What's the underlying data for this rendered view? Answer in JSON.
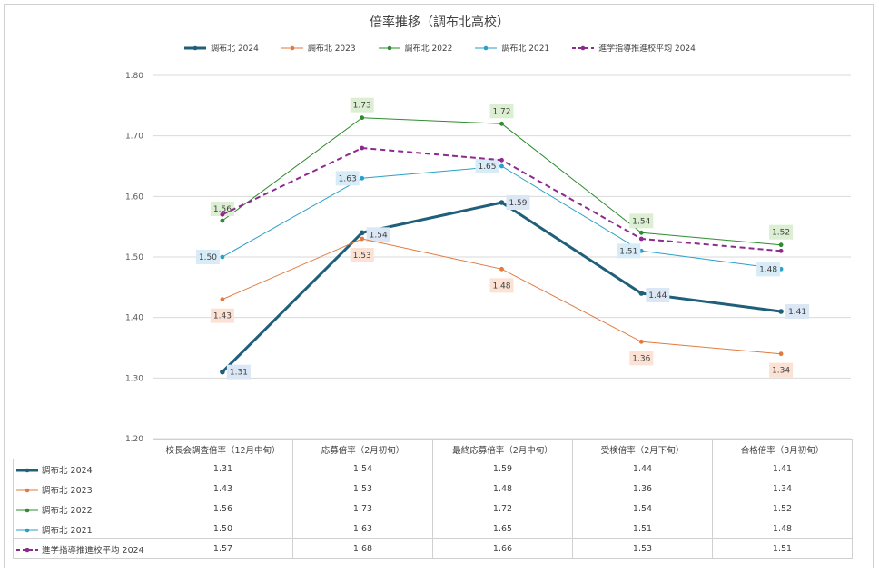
{
  "chart_data": {
    "type": "line",
    "title": "倍率推移（調布北高校）",
    "categories": [
      "校長会調査倍率（12月中旬）",
      "応募倍率（2月初旬）",
      "最終応募倍率（2月中旬）",
      "受検倍率（2月下旬）",
      "合格倍率（3月初旬）"
    ],
    "ylim": [
      1.2,
      1.8
    ],
    "yticks": [
      "1.20",
      "1.30",
      "1.40",
      "1.50",
      "1.60",
      "1.70",
      "1.80"
    ],
    "grid": true,
    "legend_position": "top",
    "series": [
      {
        "name": "調布北 2024",
        "values": [
          1.31,
          1.54,
          1.59,
          1.44,
          1.41
        ],
        "labels": [
          "1.31",
          "1.54",
          "1.59",
          "1.44",
          "1.41"
        ],
        "color": "#1f5f7a",
        "label_bg": "#dbe7f5",
        "style": "thick"
      },
      {
        "name": "調布北 2023",
        "values": [
          1.43,
          1.53,
          1.48,
          1.36,
          1.34
        ],
        "labels": [
          "1.43",
          "1.53",
          "1.48",
          "1.36",
          "1.34"
        ],
        "color": "#e07a3f",
        "label_bg": "#fbe2d5",
        "style": "solid"
      },
      {
        "name": "調布北 2022",
        "values": [
          1.56,
          1.73,
          1.72,
          1.54,
          1.52
        ],
        "labels": [
          "1.56",
          "1.73",
          "1.72",
          "1.54",
          "1.52"
        ],
        "color": "#2e8b2e",
        "label_bg": "#dcefd2",
        "style": "solid"
      },
      {
        "name": "調布北 2021",
        "values": [
          1.5,
          1.63,
          1.65,
          1.51,
          1.48
        ],
        "labels": [
          "1.50",
          "1.63",
          "1.65",
          "1.51",
          "1.48"
        ],
        "color": "#2aa0c8",
        "label_bg": "#d8ecf8",
        "style": "solid"
      },
      {
        "name": "進学指導推進校平均 2024",
        "values": [
          1.57,
          1.68,
          1.66,
          1.53,
          1.51
        ],
        "labels": null,
        "color": "#8e2a8e",
        "label_bg": null,
        "style": "dashed"
      }
    ],
    "table_rows": [
      [
        "1.31",
        "1.54",
        "1.59",
        "1.44",
        "1.41"
      ],
      [
        "1.43",
        "1.53",
        "1.48",
        "1.36",
        "1.34"
      ],
      [
        "1.56",
        "1.73",
        "1.72",
        "1.54",
        "1.52"
      ],
      [
        "1.50",
        "1.63",
        "1.65",
        "1.51",
        "1.48"
      ],
      [
        "1.57",
        "1.68",
        "1.66",
        "1.53",
        "1.51"
      ]
    ]
  }
}
